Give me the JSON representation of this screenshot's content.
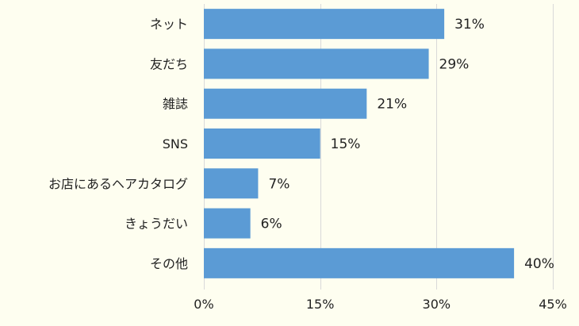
{
  "colors": {
    "background": "#fefef0",
    "bar": "#5b9bd5",
    "grid": "#d9d9d9",
    "text": "#222222"
  },
  "chart_data": {
    "type": "bar",
    "orientation": "horizontal",
    "title": "",
    "xlabel": "",
    "ylabel": "",
    "categories": [
      "ネット",
      "友だち",
      "雑誌",
      "SNS",
      "お店にあるヘアカタログ",
      "きょうだい",
      "その他"
    ],
    "values": [
      31,
      29,
      21,
      15,
      7,
      6,
      40
    ],
    "value_labels": [
      "31%",
      "29%",
      "21%",
      "15%",
      "7%",
      "6%",
      "40%"
    ],
    "xlim": [
      0,
      45
    ],
    "x_ticks": [
      0,
      15,
      30,
      45
    ],
    "x_tick_labels": [
      "0%",
      "15%",
      "30%",
      "45%"
    ],
    "grid": "vertical",
    "legend": "none"
  }
}
